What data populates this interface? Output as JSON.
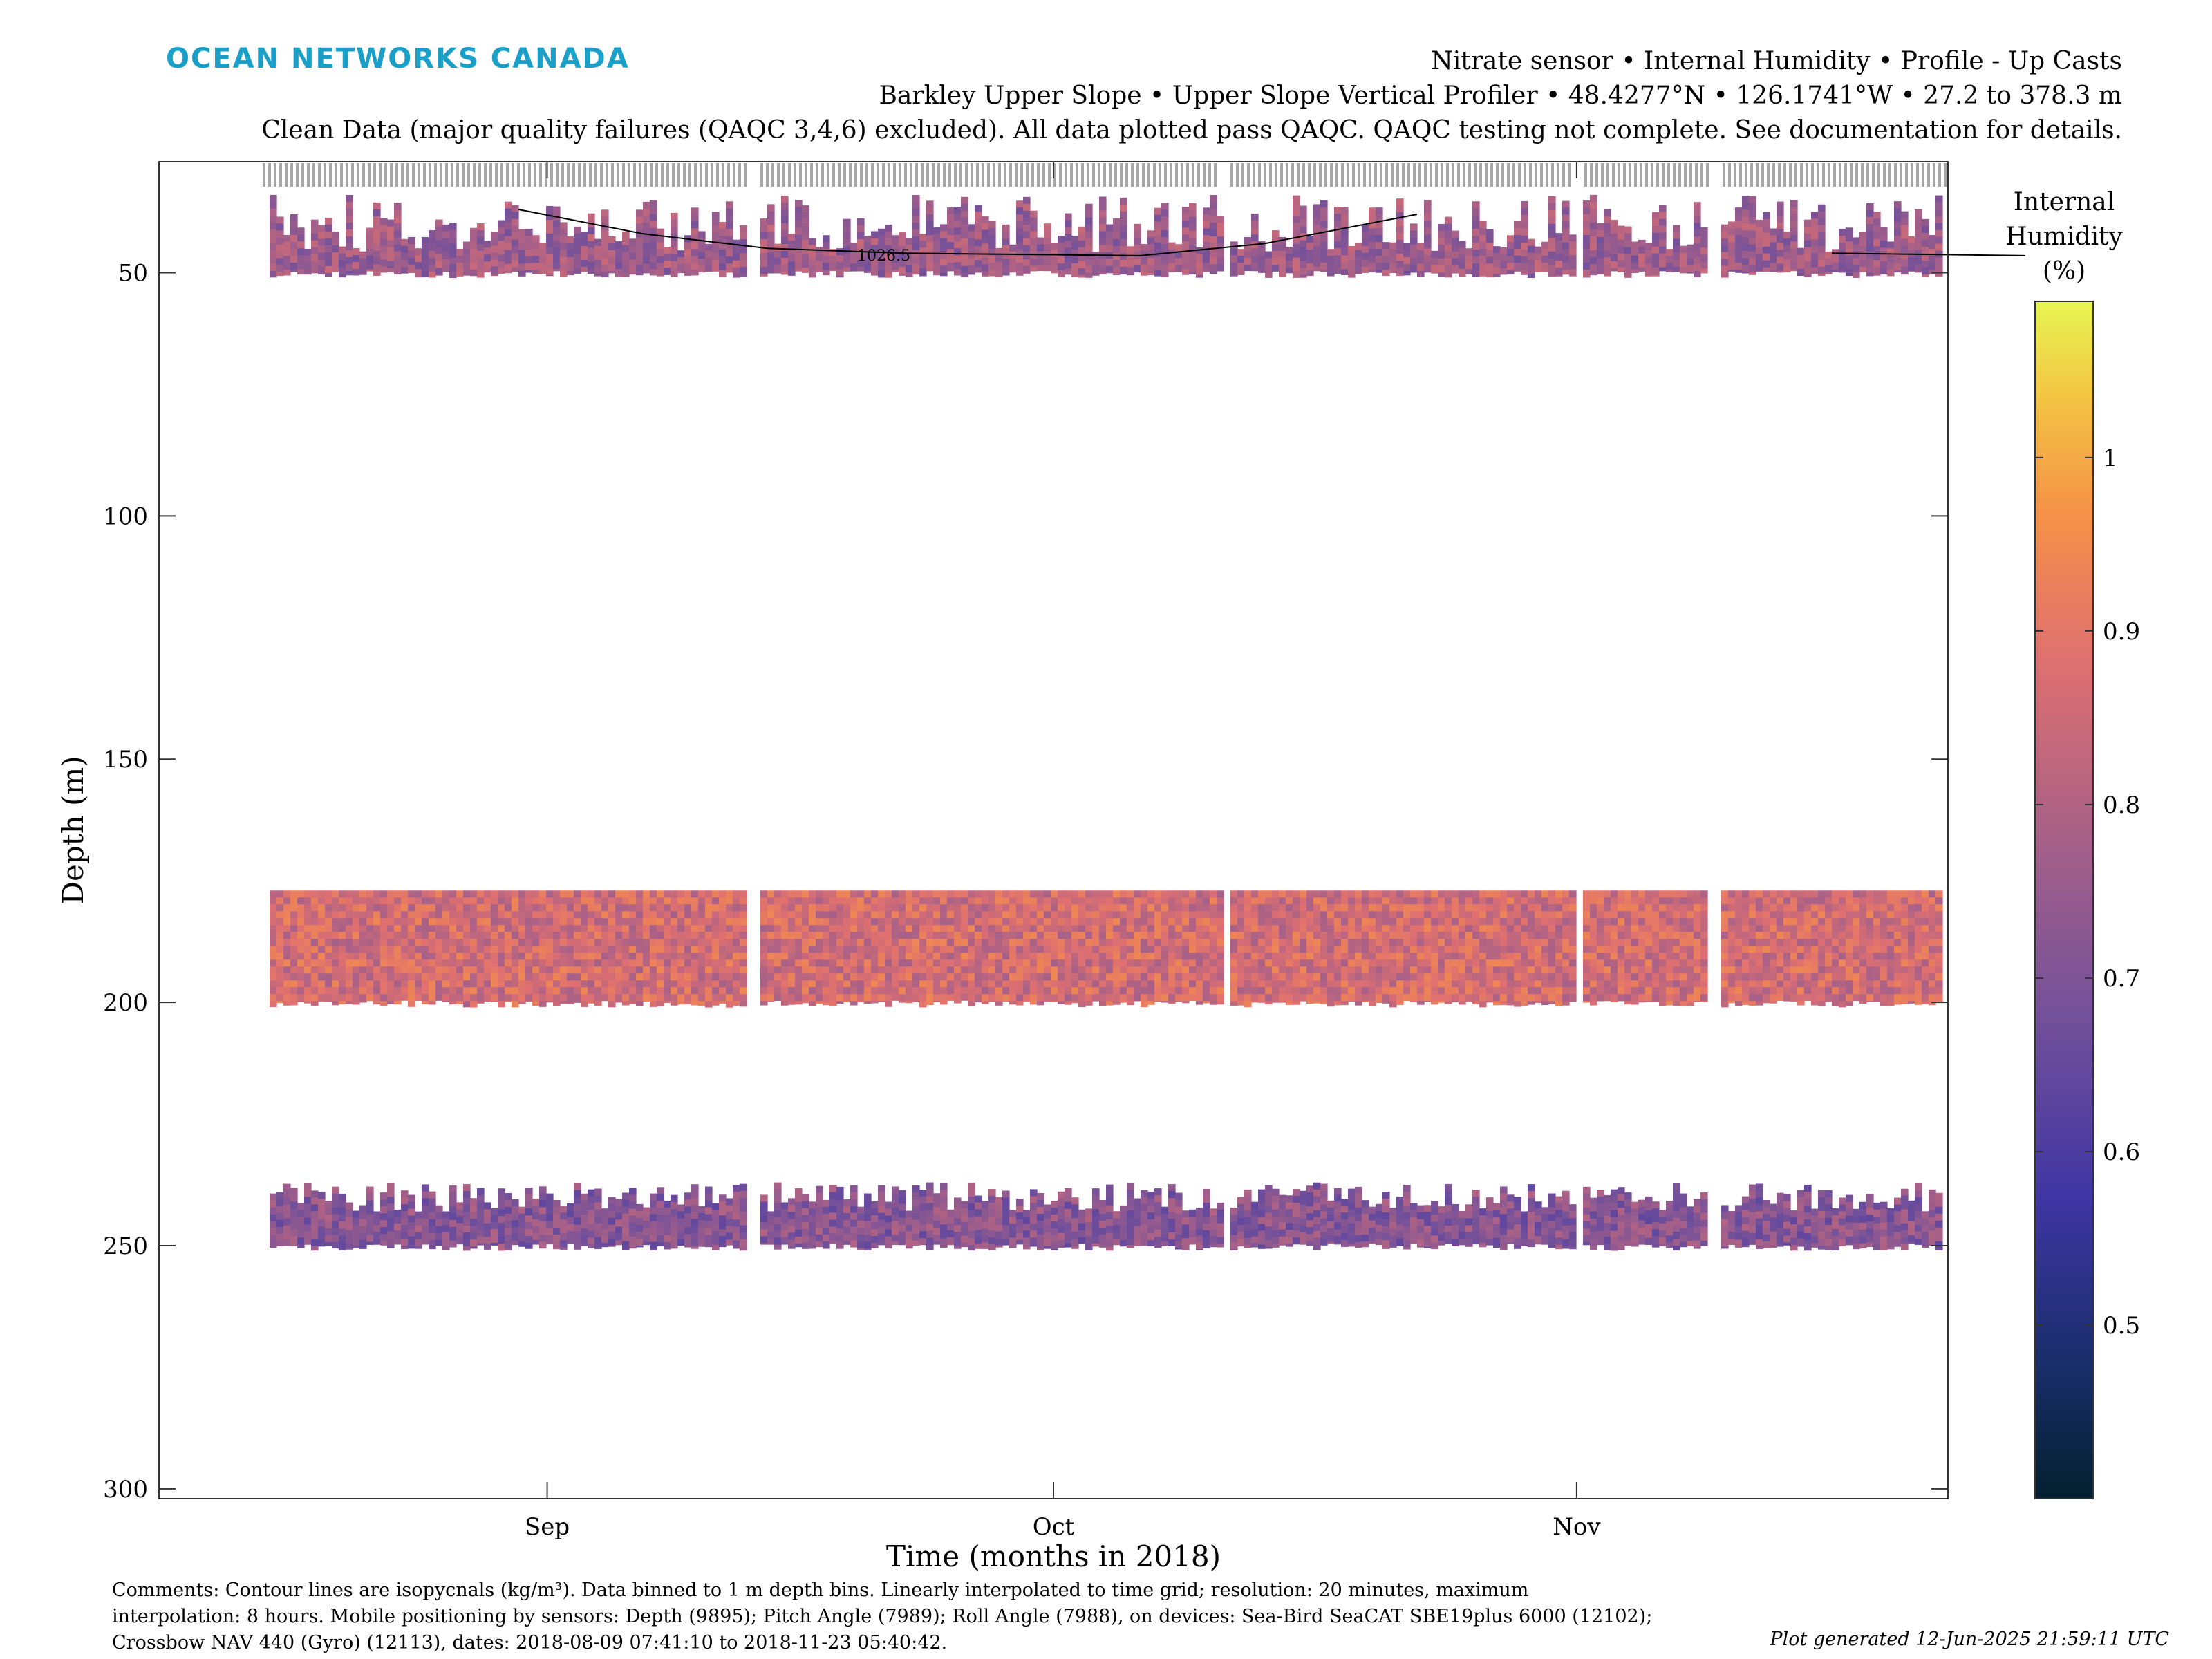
{
  "logo_text": "OCEAN NETWORKS CANADA",
  "header": {
    "line1": "Nitrate sensor • Internal Humidity • Profile - Up Casts",
    "line2": "Barkley Upper Slope • Upper Slope Vertical Profiler • 48.4277°N • 126.1741°W • 27.2 to 378.3 m",
    "line3": "Clean Data (major quality failures (QAQC 3,4,6) excluded). All data plotted pass QAQC. QAQC testing not complete. See documentation for details."
  },
  "chart_data": {
    "type": "heatmap",
    "xlabel": "Time (months in 2018)",
    "ylabel": "Depth (m)",
    "x_ticks": [
      "Sep",
      "Oct",
      "Nov"
    ],
    "y_ticks": [
      50,
      100,
      150,
      200,
      250,
      300
    ],
    "ylim": [
      27.2,
      302
    ],
    "y_reversed": true,
    "xlim": [
      "2018-08-09",
      "2018-11-23"
    ],
    "colorbar": {
      "label_lines": [
        "Internal",
        "Humidity",
        "(%)"
      ],
      "ticks": [
        0.5,
        0.6,
        0.7,
        0.8,
        0.9,
        1
      ],
      "range": [
        0.4,
        1.09
      ],
      "colormap": "thermal"
    },
    "contour_label": "1026.5",
    "data_bands": [
      {
        "depth_range": [
          30,
          50
        ],
        "typical_value": 0.76
      },
      {
        "depth_range": [
          177,
          200
        ],
        "typical_value": 0.86
      },
      {
        "depth_range": [
          237,
          250
        ],
        "typical_value": 0.72
      }
    ],
    "gaps": [
      "2018-09-13",
      "2018-10-11",
      "2018-11-01",
      "2018-11-09"
    ]
  },
  "footer": {
    "line1": "Comments: Contour lines are isopycnals (kg/m³). Data binned to 1 m depth bins. Linearly interpolated to time grid; resolution: 20 minutes, maximum",
    "line2": "interpolation: 8 hours. Mobile positioning by sensors: Depth (9895); Pitch Angle (7989); Roll Angle (7988), on devices: Sea-Bird SeaCAT SBE19plus 6000 (12102);",
    "line3": "Crossbow NAV 440 (Gyro) (12113), dates: 2018-08-09 07:41:10 to 2018-11-23 05:40:42.",
    "plot_generated": "Plot generated 12-Jun-2025 21:59:11 UTC"
  }
}
